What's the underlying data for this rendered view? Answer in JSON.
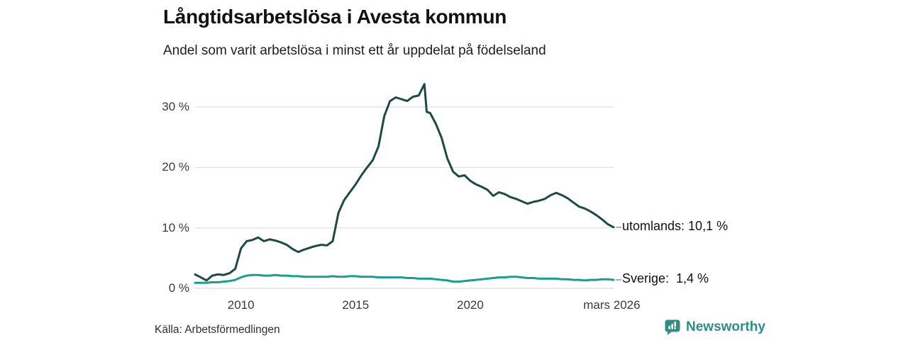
{
  "header": {
    "title": "Långtidsarbetslösa i Avesta kommun",
    "subtitle": "Andel som varit arbetslösa i minst ett år uppdelat på födelseland"
  },
  "footer": {
    "source": "Källa: Arbetsförmedlingen",
    "brand": "Newsworthy"
  },
  "colors": {
    "utomlands_line": "#1e4a44",
    "sverige_line": "#18a08f",
    "grid": "#e2e2e2",
    "connector": "#9a9a9a",
    "title_text": "#111111",
    "axis_text": "#3a3a3a",
    "brand_teal": "#2e8e87"
  },
  "chart_data": {
    "type": "line",
    "title": "Långtidsarbetslösa i Avesta kommun",
    "subtitle": "Andel som varit arbetslösa i minst ett år uppdelat på födelseland",
    "grid": true,
    "x_axis": {
      "range": [
        2008,
        2026.25
      ],
      "ticks": [
        {
          "value": 2010,
          "label": "2010"
        },
        {
          "value": 2015,
          "label": "2015"
        },
        {
          "value": 2020,
          "label": "2020"
        },
        {
          "value": 2026.17,
          "label": "mars 2026"
        }
      ]
    },
    "y_axis": {
      "range": [
        0,
        35
      ],
      "unit": "%",
      "ticks": [
        {
          "value": 0,
          "label": "0 %"
        },
        {
          "value": 10,
          "label": "10 %"
        },
        {
          "value": 20,
          "label": "20 %"
        },
        {
          "value": 30,
          "label": "30 %"
        }
      ]
    },
    "series": [
      {
        "id": "utomlands",
        "name": "utomlands",
        "label": "utomlands: 10,1 %",
        "end_value": "10,1 %",
        "color": "#1e4a44",
        "x": [
          2008.0,
          2008.25,
          2008.5,
          2008.75,
          2009.0,
          2009.25,
          2009.5,
          2009.75,
          2010.0,
          2010.25,
          2010.5,
          2010.75,
          2011.0,
          2011.25,
          2011.5,
          2011.75,
          2012.0,
          2012.25,
          2012.5,
          2012.75,
          2013.0,
          2013.25,
          2013.5,
          2013.75,
          2014.0,
          2014.25,
          2014.5,
          2014.75,
          2015.0,
          2015.25,
          2015.5,
          2015.75,
          2016.0,
          2016.25,
          2016.5,
          2016.75,
          2017.0,
          2017.25,
          2017.5,
          2017.75,
          2018.0,
          2018.1,
          2018.25,
          2018.5,
          2018.75,
          2019.0,
          2019.25,
          2019.5,
          2019.75,
          2020.0,
          2020.25,
          2020.5,
          2020.75,
          2021.0,
          2021.25,
          2021.5,
          2021.75,
          2022.0,
          2022.25,
          2022.5,
          2022.75,
          2023.0,
          2023.25,
          2023.5,
          2023.75,
          2024.0,
          2024.25,
          2024.5,
          2024.75,
          2025.0,
          2025.25,
          2025.5,
          2025.75,
          2026.0,
          2026.25
        ],
        "values": [
          2.3,
          1.8,
          1.3,
          2.1,
          2.3,
          2.2,
          2.5,
          3.2,
          6.6,
          7.8,
          8.0,
          8.4,
          7.8,
          8.1,
          7.9,
          7.6,
          7.2,
          6.5,
          6.0,
          6.4,
          6.7,
          7.0,
          7.2,
          7.1,
          7.8,
          12.5,
          14.6,
          15.9,
          17.2,
          18.7,
          20.0,
          21.2,
          23.5,
          28.5,
          31.0,
          31.6,
          31.3,
          31.0,
          31.7,
          31.9,
          33.8,
          29.2,
          29.0,
          27.2,
          24.9,
          21.5,
          19.3,
          18.5,
          18.7,
          17.8,
          17.2,
          16.8,
          16.3,
          15.3,
          15.9,
          15.6,
          15.1,
          14.8,
          14.4,
          14.0,
          14.3,
          14.5,
          14.8,
          15.4,
          15.8,
          15.4,
          14.9,
          14.2,
          13.5,
          13.2,
          12.7,
          12.1,
          11.4,
          10.6,
          10.1
        ]
      },
      {
        "id": "sverige",
        "name": "Sverige",
        "label": "Sverige:  1,4 %",
        "end_value": "1,4 %",
        "color": "#18a08f",
        "x": [
          2008.0,
          2008.25,
          2008.5,
          2008.75,
          2009.0,
          2009.25,
          2009.5,
          2009.75,
          2010.0,
          2010.25,
          2010.5,
          2010.75,
          2011.0,
          2011.25,
          2011.5,
          2011.75,
          2012.0,
          2012.25,
          2012.5,
          2012.75,
          2013.0,
          2013.25,
          2013.5,
          2013.75,
          2014.0,
          2014.25,
          2014.5,
          2014.75,
          2015.0,
          2015.25,
          2015.5,
          2015.75,
          2016.0,
          2016.25,
          2016.5,
          2016.75,
          2017.0,
          2017.25,
          2017.5,
          2017.75,
          2018.0,
          2018.1,
          2018.25,
          2018.5,
          2018.75,
          2019.0,
          2019.25,
          2019.5,
          2019.75,
          2020.0,
          2020.25,
          2020.5,
          2020.75,
          2021.0,
          2021.25,
          2021.5,
          2021.75,
          2022.0,
          2022.25,
          2022.5,
          2022.75,
          2023.0,
          2023.25,
          2023.5,
          2023.75,
          2024.0,
          2024.25,
          2024.5,
          2024.75,
          2025.0,
          2025.25,
          2025.5,
          2025.75,
          2026.0,
          2026.25
        ],
        "values": [
          0.9,
          0.9,
          0.9,
          1.0,
          1.0,
          1.1,
          1.2,
          1.4,
          1.8,
          2.1,
          2.2,
          2.2,
          2.1,
          2.1,
          2.2,
          2.1,
          2.1,
          2.0,
          2.0,
          1.9,
          1.9,
          1.9,
          1.9,
          1.9,
          2.0,
          1.9,
          1.9,
          2.0,
          2.0,
          1.9,
          1.9,
          1.9,
          1.8,
          1.8,
          1.8,
          1.8,
          1.8,
          1.7,
          1.7,
          1.6,
          1.6,
          1.6,
          1.6,
          1.5,
          1.4,
          1.3,
          1.1,
          1.1,
          1.2,
          1.3,
          1.4,
          1.5,
          1.6,
          1.7,
          1.8,
          1.8,
          1.9,
          1.9,
          1.8,
          1.7,
          1.7,
          1.6,
          1.6,
          1.6,
          1.6,
          1.5,
          1.5,
          1.4,
          1.4,
          1.3,
          1.4,
          1.4,
          1.5,
          1.5,
          1.4
        ]
      }
    ]
  }
}
